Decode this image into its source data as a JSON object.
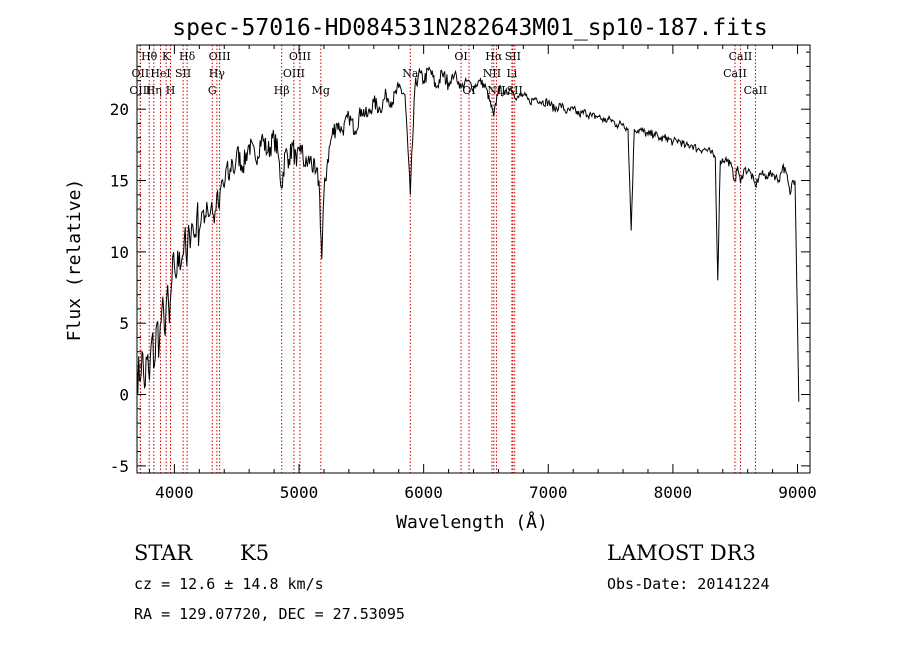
{
  "chart_data": {
    "type": "line",
    "title": "spec-57016-HD084531N282643M01_sp10-187.fits",
    "xlabel": "Wavelength (Å)",
    "ylabel": "Flux (relative)",
    "xlim": [
      3700,
      9100
    ],
    "ylim": [
      -5.5,
      24.5
    ],
    "x_ticks": [
      4000,
      5000,
      6000,
      7000,
      8000,
      9000
    ],
    "y_ticks": [
      -5,
      0,
      5,
      10,
      15,
      20
    ],
    "x_minor_step": 200,
    "y_minor_step": 1,
    "line_color": "#000000",
    "marker_color": "#cc0000",
    "series": [
      {
        "name": "flux",
        "points": [
          [
            3700,
            2.0
          ],
          [
            3720,
            1.0
          ],
          [
            3740,
            3.0
          ],
          [
            3760,
            0.5
          ],
          [
            3780,
            2.5
          ],
          [
            3800,
            1.0
          ],
          [
            3820,
            4.0
          ],
          [
            3840,
            2.0
          ],
          [
            3860,
            5.0
          ],
          [
            3880,
            3.5
          ],
          [
            3900,
            6.0
          ],
          [
            3920,
            4.5
          ],
          [
            3940,
            7.0
          ],
          [
            3960,
            5.0
          ],
          [
            3980,
            8.0
          ],
          [
            4000,
            9.0
          ],
          [
            4020,
            8.5
          ],
          [
            4040,
            10.0
          ],
          [
            4060,
            9.5
          ],
          [
            4080,
            11.0
          ],
          [
            4100,
            9.0
          ],
          [
            4120,
            11.5
          ],
          [
            4140,
            12.0
          ],
          [
            4160,
            11.0
          ],
          [
            4180,
            12.5
          ],
          [
            4200,
            11.5
          ],
          [
            4220,
            12.8
          ],
          [
            4240,
            12.0
          ],
          [
            4260,
            13.5
          ],
          [
            4280,
            12.5
          ],
          [
            4300,
            13.5
          ],
          [
            4320,
            12.0
          ],
          [
            4340,
            14.0
          ],
          [
            4360,
            13.0
          ],
          [
            4380,
            15.0
          ],
          [
            4400,
            14.5
          ],
          [
            4420,
            16.0
          ],
          [
            4440,
            15.0
          ],
          [
            4460,
            16.5
          ],
          [
            4480,
            15.5
          ],
          [
            4500,
            17.0
          ],
          [
            4550,
            16.0
          ],
          [
            4600,
            17.5
          ],
          [
            4650,
            16.5
          ],
          [
            4700,
            18.0
          ],
          [
            4750,
            17.0
          ],
          [
            4800,
            18.0
          ],
          [
            4830,
            17.0
          ],
          [
            4861,
            14.5
          ],
          [
            4890,
            17.0
          ],
          [
            4920,
            16.5
          ],
          [
            4950,
            17.5
          ],
          [
            4980,
            16.0
          ],
          [
            5010,
            17.5
          ],
          [
            5050,
            16.0
          ],
          [
            5090,
            16.5
          ],
          [
            5130,
            15.5
          ],
          [
            5160,
            15.0
          ],
          [
            5183,
            9.5
          ],
          [
            5200,
            14.0
          ],
          [
            5230,
            16.5
          ],
          [
            5260,
            18.0
          ],
          [
            5300,
            19.0
          ],
          [
            5350,
            18.5
          ],
          [
            5400,
            19.5
          ],
          [
            5450,
            18.5
          ],
          [
            5500,
            20.0
          ],
          [
            5550,
            19.5
          ],
          [
            5600,
            20.5
          ],
          [
            5650,
            20.0
          ],
          [
            5700,
            21.0
          ],
          [
            5750,
            20.5
          ],
          [
            5800,
            21.5
          ],
          [
            5850,
            21.0
          ],
          [
            5893,
            14.0
          ],
          [
            5930,
            21.5
          ],
          [
            5960,
            22.5
          ],
          [
            6000,
            22.0
          ],
          [
            6050,
            22.8
          ],
          [
            6100,
            21.5
          ],
          [
            6150,
            22.5
          ],
          [
            6200,
            21.8
          ],
          [
            6250,
            22.5
          ],
          [
            6300,
            21.5
          ],
          [
            6350,
            22.0
          ],
          [
            6400,
            21.5
          ],
          [
            6450,
            22.0
          ],
          [
            6500,
            21.5
          ],
          [
            6563,
            19.5
          ],
          [
            6600,
            21.5
          ],
          [
            6650,
            21.0
          ],
          [
            6700,
            21.5
          ],
          [
            6750,
            20.8
          ],
          [
            6800,
            21.0
          ],
          [
            6850,
            20.5
          ],
          [
            6900,
            20.8
          ],
          [
            6950,
            20.5
          ],
          [
            7000,
            20.5
          ],
          [
            7050,
            20.0
          ],
          [
            7100,
            20.3
          ],
          [
            7150,
            19.8
          ],
          [
            7200,
            20.0
          ],
          [
            7250,
            19.6
          ],
          [
            7300,
            19.8
          ],
          [
            7350,
            19.5
          ],
          [
            7400,
            19.5
          ],
          [
            7450,
            19.2
          ],
          [
            7500,
            19.3
          ],
          [
            7550,
            18.9
          ],
          [
            7600,
            19.0
          ],
          [
            7640,
            18.6
          ],
          [
            7665,
            11.5
          ],
          [
            7690,
            18.6
          ],
          [
            7750,
            18.5
          ],
          [
            7800,
            18.2
          ],
          [
            7850,
            18.3
          ],
          [
            7900,
            17.9
          ],
          [
            7950,
            18.0
          ],
          [
            8000,
            17.7
          ],
          [
            8050,
            17.8
          ],
          [
            8100,
            17.4
          ],
          [
            8150,
            17.5
          ],
          [
            8200,
            17.2
          ],
          [
            8250,
            17.2
          ],
          [
            8300,
            17.0
          ],
          [
            8340,
            16.6
          ],
          [
            8360,
            8.0
          ],
          [
            8380,
            16.4
          ],
          [
            8420,
            16.5
          ],
          [
            8460,
            16.2
          ],
          [
            8498,
            15.0
          ],
          [
            8520,
            16.0
          ],
          [
            8542,
            14.8
          ],
          [
            8570,
            15.8
          ],
          [
            8620,
            15.6
          ],
          [
            8662,
            14.6
          ],
          [
            8700,
            15.5
          ],
          [
            8750,
            15.3
          ],
          [
            8800,
            15.5
          ],
          [
            8850,
            15.0
          ],
          [
            8880,
            16.0
          ],
          [
            8910,
            15.5
          ],
          [
            8940,
            14.0
          ],
          [
            8960,
            15.0
          ],
          [
            8980,
            15.0
          ],
          [
            9000,
            5.0
          ],
          [
            9010,
            -0.5
          ]
        ]
      }
    ],
    "spectral_lines": [
      {
        "label": "Hθ",
        "wavelength": 3798,
        "row": 0
      },
      {
        "label": "OII",
        "wavelength": 3727,
        "row": 1
      },
      {
        "label": "OIII",
        "wavelength": 3727,
        "row": 2
      },
      {
        "label": "K",
        "wavelength": 3934,
        "row": 0
      },
      {
        "label": "HeI",
        "wavelength": 3889,
        "row": 1
      },
      {
        "label": "Hη",
        "wavelength": 3835,
        "row": 2
      },
      {
        "label": "Hδ",
        "wavelength": 4102,
        "row": 0
      },
      {
        "label": "SII",
        "wavelength": 4070,
        "row": 1
      },
      {
        "label": "H",
        "wavelength": 3969,
        "row": 2
      },
      {
        "label": "OIII",
        "wavelength": 4363,
        "row": 0
      },
      {
        "label": "Hγ",
        "wavelength": 4341,
        "row": 1
      },
      {
        "label": "G",
        "wavelength": 4304,
        "row": 2
      },
      {
        "label": "OIII",
        "wavelength": 5007,
        "row": 0
      },
      {
        "label": "OIII",
        "wavelength": 4959,
        "row": 1
      },
      {
        "label": "Hβ",
        "wavelength": 4861,
        "row": 2
      },
      {
        "label": "Mg",
        "wavelength": 5175,
        "row": 2
      },
      {
        "label": "Na",
        "wavelength": 5893,
        "row": 1
      },
      {
        "label": "OI",
        "wavelength": 6300,
        "row": 0
      },
      {
        "label": "OI",
        "wavelength": 6364,
        "row": 2
      },
      {
        "label": "Hα",
        "wavelength": 6563,
        "row": 0
      },
      {
        "label": "NII",
        "wavelength": 6548,
        "row": 1
      },
      {
        "label": "NII",
        "wavelength": 6584,
        "row": 2
      },
      {
        "label": "SII",
        "wavelength": 6716,
        "row": 0
      },
      {
        "label": "Li",
        "wavelength": 6708,
        "row": 1
      },
      {
        "label": "SII",
        "wavelength": 6731,
        "row": 2
      },
      {
        "label": "CaII",
        "wavelength": 8542,
        "row": 0
      },
      {
        "label": "CaII",
        "wavelength": 8498,
        "row": 1
      },
      {
        "label": "CaII",
        "wavelength": 8662,
        "row": 2
      }
    ]
  },
  "info": {
    "object_class": "STAR",
    "subclass": "K5",
    "survey": "LAMOST DR3",
    "cz": "cz = 12.6 ± 14.8 km/s",
    "obs_date": "Obs-Date: 20141224",
    "coords": "RA = 129.07720, DEC =  27.53095"
  }
}
